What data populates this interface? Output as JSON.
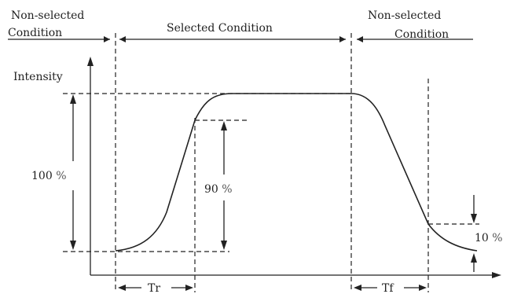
{
  "labels": {
    "non_selected_left_line1": "Non-selected",
    "non_selected_left_line2": "Condition",
    "selected": "Selected Condition",
    "non_selected_right_line1": "Non-selected",
    "non_selected_right_line2": "Condition",
    "y_axis": "Intensity",
    "pct_100_value": "100",
    "pct_90_value": "90",
    "pct_10_value": "10",
    "pct_symbol": "%",
    "rise_time": "Tr",
    "fall_time": "Tf"
  }
}
